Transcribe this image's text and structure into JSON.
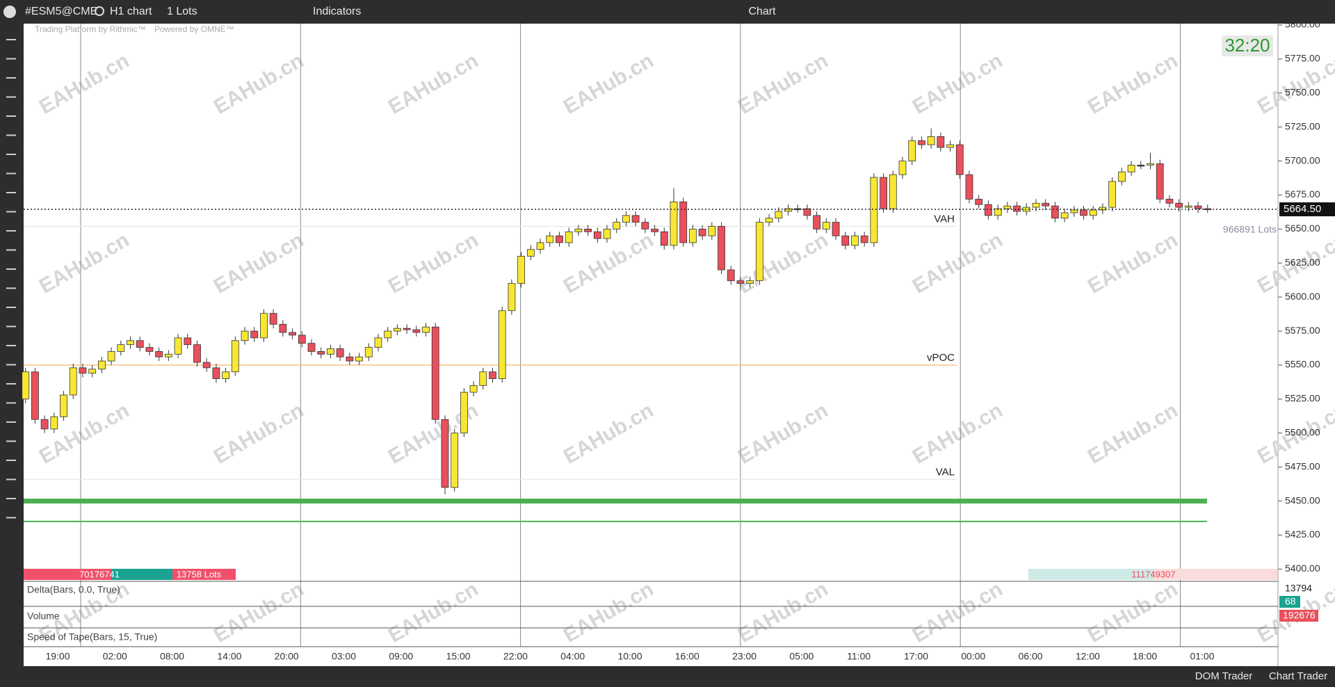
{
  "toolbar": {
    "symbol": "#ESM5@CME",
    "timeframe": "H1 chart",
    "quantity": "1 Lots",
    "indicators": "Indicators",
    "title": "Chart"
  },
  "watermark": {
    "platform": "Trading Platform by Rithmic™",
    "powered": "Powered by OMNE™",
    "site": "EAHub.cn"
  },
  "timer": "32:20",
  "chart_data": {
    "type": "candlestick",
    "ylim": [
      5391,
      5800
    ],
    "yticks": [
      {
        "value": 5400,
        "label": "5400.00"
      },
      {
        "value": 5425,
        "label": "5425.00"
      },
      {
        "value": 5450,
        "label": "5450.00"
      },
      {
        "value": 5475,
        "label": "5475.00"
      },
      {
        "value": 5500,
        "label": "5500.00"
      },
      {
        "value": 5525,
        "label": "5525.00"
      },
      {
        "value": 5550,
        "label": "5550.00"
      },
      {
        "value": 5575,
        "label": "5575.00"
      },
      {
        "value": 5600,
        "label": "5600.00"
      },
      {
        "value": 5625,
        "label": "5625.00"
      },
      {
        "value": 5650,
        "label": "5650.00"
      },
      {
        "value": 5675,
        "label": "5675.00"
      },
      {
        "value": 5700,
        "label": "5700.00"
      },
      {
        "value": 5725,
        "label": "5725.00"
      },
      {
        "value": 5750,
        "label": "5750.00"
      },
      {
        "value": 5775,
        "label": "5775.00"
      },
      {
        "value": 5800,
        "label": "5800.00"
      }
    ],
    "time_labels": [
      "19:00",
      "02:00",
      "08:00",
      "14:00",
      "20:00",
      "03:00",
      "09:00",
      "15:00",
      "22:00",
      "04:00",
      "10:00",
      "16:00",
      "23:00",
      "05:00",
      "11:00",
      "17:00",
      "00:00",
      "06:00",
      "12:00",
      "18:00",
      "01:00"
    ],
    "up_color": "#f7e733",
    "down_color": "#e8505b",
    "candles": [
      [
        5525,
        5548,
        5522,
        5545
      ],
      [
        5545,
        5548,
        5507,
        5510
      ],
      [
        5510,
        5513,
        5500,
        5503
      ],
      [
        5503,
        5515,
        5500,
        5512
      ],
      [
        5512,
        5531,
        5509,
        5528
      ],
      [
        5528,
        5551,
        5525,
        5548
      ],
      [
        5548,
        5551,
        5541,
        5544
      ],
      [
        5544,
        5550,
        5541,
        5547
      ],
      [
        5547,
        5556,
        5544,
        5553
      ],
      [
        5553,
        5563,
        5550,
        5560
      ],
      [
        5560,
        5568,
        5557,
        5565
      ],
      [
        5565,
        5571,
        5562,
        5568
      ],
      [
        5568,
        5571,
        5560,
        5563
      ],
      [
        5563,
        5566,
        5557,
        5560
      ],
      [
        5560,
        5563,
        5553,
        5556
      ],
      [
        5556,
        5561,
        5553,
        5558
      ],
      [
        5558,
        5573,
        5555,
        5570
      ],
      [
        5570,
        5573,
        5562,
        5565
      ],
      [
        5565,
        5568,
        5549,
        5552
      ],
      [
        5552,
        5555,
        5545,
        5548
      ],
      [
        5548,
        5551,
        5537,
        5540
      ],
      [
        5540,
        5548,
        5537,
        5545
      ],
      [
        5545,
        5571,
        5542,
        5568
      ],
      [
        5568,
        5578,
        5565,
        5575
      ],
      [
        5575,
        5578,
        5567,
        5570
      ],
      [
        5570,
        5591,
        5567,
        5588
      ],
      [
        5588,
        5591,
        5577,
        5580
      ],
      [
        5580,
        5583,
        5571,
        5574
      ],
      [
        5574,
        5577,
        5569,
        5572
      ],
      [
        5572,
        5575,
        5563,
        5566
      ],
      [
        5566,
        5569,
        5557,
        5560
      ],
      [
        5560,
        5563,
        5555,
        5558
      ],
      [
        5558,
        5565,
        5555,
        5562
      ],
      [
        5562,
        5565,
        5553,
        5556
      ],
      [
        5556,
        5559,
        5550,
        5553
      ],
      [
        5553,
        5559,
        5550,
        5556
      ],
      [
        5556,
        5566,
        5553,
        5563
      ],
      [
        5563,
        5573,
        5560,
        5570
      ],
      [
        5570,
        5578,
        5567,
        5575
      ],
      [
        5575,
        5580,
        5572,
        5577
      ],
      [
        5577,
        5580,
        5573,
        5576
      ],
      [
        5576,
        5579,
        5571,
        5574
      ],
      [
        5574,
        5581,
        5571,
        5578
      ],
      [
        5578,
        5581,
        5507,
        5510
      ],
      [
        5510,
        5513,
        5455,
        5460
      ],
      [
        5460,
        5503,
        5457,
        5500
      ],
      [
        5500,
        5533,
        5497,
        5530
      ],
      [
        5530,
        5538,
        5527,
        5535
      ],
      [
        5535,
        5548,
        5532,
        5545
      ],
      [
        5545,
        5548,
        5537,
        5540
      ],
      [
        5540,
        5593,
        5537,
        5590
      ],
      [
        5590,
        5613,
        5587,
        5610
      ],
      [
        5610,
        5633,
        5607,
        5630
      ],
      [
        5630,
        5638,
        5627,
        5635
      ],
      [
        5635,
        5643,
        5632,
        5640
      ],
      [
        5640,
        5648,
        5637,
        5645
      ],
      [
        5645,
        5648,
        5637,
        5640
      ],
      [
        5640,
        5651,
        5637,
        5648
      ],
      [
        5648,
        5653,
        5645,
        5650
      ],
      [
        5650,
        5653,
        5645,
        5648
      ],
      [
        5648,
        5651,
        5640,
        5643
      ],
      [
        5643,
        5653,
        5640,
        5650
      ],
      [
        5650,
        5658,
        5647,
        5655
      ],
      [
        5655,
        5663,
        5652,
        5660
      ],
      [
        5660,
        5663,
        5652,
        5655
      ],
      [
        5655,
        5658,
        5647,
        5650
      ],
      [
        5650,
        5653,
        5645,
        5648
      ],
      [
        5648,
        5651,
        5635,
        5638
      ],
      [
        5638,
        5680,
        5635,
        5670
      ],
      [
        5670,
        5673,
        5637,
        5640
      ],
      [
        5640,
        5653,
        5637,
        5650
      ],
      [
        5650,
        5653,
        5642,
        5645
      ],
      [
        5645,
        5655,
        5642,
        5652
      ],
      [
        5652,
        5655,
        5617,
        5620
      ],
      [
        5620,
        5623,
        5609,
        5612
      ],
      [
        5612,
        5615,
        5605,
        5610
      ],
      [
        5610,
        5615,
        5607,
        5612
      ],
      [
        5612,
        5658,
        5609,
        5655
      ],
      [
        5655,
        5661,
        5652,
        5658
      ],
      [
        5658,
        5666,
        5655,
        5663
      ],
      [
        5663,
        5668,
        5660,
        5665
      ],
      [
        5665,
        5668,
        5662,
        5665
      ],
      [
        5665,
        5668,
        5657,
        5660
      ],
      [
        5660,
        5663,
        5647,
        5650
      ],
      [
        5650,
        5658,
        5647,
        5655
      ],
      [
        5655,
        5658,
        5642,
        5645
      ],
      [
        5645,
        5648,
        5635,
        5638
      ],
      [
        5638,
        5648,
        5635,
        5645
      ],
      [
        5645,
        5648,
        5637,
        5640
      ],
      [
        5640,
        5691,
        5637,
        5688
      ],
      [
        5688,
        5691,
        5662,
        5665
      ],
      [
        5665,
        5693,
        5662,
        5690
      ],
      [
        5690,
        5703,
        5687,
        5700
      ],
      [
        5700,
        5718,
        5697,
        5715
      ],
      [
        5715,
        5718,
        5709,
        5712
      ],
      [
        5712,
        5724,
        5709,
        5718
      ],
      [
        5718,
        5721,
        5707,
        5710
      ],
      [
        5710,
        5715,
        5707,
        5712
      ],
      [
        5712,
        5715,
        5687,
        5690
      ],
      [
        5690,
        5693,
        5669,
        5672
      ],
      [
        5672,
        5675,
        5665,
        5668
      ],
      [
        5668,
        5671,
        5657,
        5660
      ],
      [
        5660,
        5668,
        5657,
        5665
      ],
      [
        5665,
        5670,
        5662,
        5667
      ],
      [
        5667,
        5670,
        5660,
        5663
      ],
      [
        5663,
        5669,
        5660,
        5666
      ],
      [
        5666,
        5672,
        5663,
        5669
      ],
      [
        5669,
        5672,
        5664,
        5667
      ],
      [
        5667,
        5670,
        5655,
        5658
      ],
      [
        5658,
        5665,
        5655,
        5662
      ],
      [
        5662,
        5667,
        5659,
        5664
      ],
      [
        5664,
        5667,
        5657,
        5660
      ],
      [
        5660,
        5667,
        5657,
        5664
      ],
      [
        5664,
        5669,
        5661,
        5666
      ],
      [
        5666,
        5688,
        5663,
        5685
      ],
      [
        5685,
        5695,
        5682,
        5692
      ],
      [
        5692,
        5700,
        5689,
        5697
      ],
      [
        5697,
        5700,
        5694,
        5697
      ],
      [
        5697,
        5706,
        5694,
        5698
      ],
      [
        5698,
        5701,
        5669,
        5672
      ],
      [
        5672,
        5675,
        5666,
        5669
      ],
      [
        5669,
        5672,
        5663,
        5666
      ],
      [
        5666,
        5670,
        5663,
        5667
      ],
      [
        5667,
        5670,
        5662,
        5665
      ],
      [
        5665,
        5668,
        5662,
        5664.5
      ]
    ],
    "last_price": {
      "value": 5664.5,
      "label": "5664.50"
    },
    "profile_levels": [
      {
        "label": "VAH",
        "price": 5652,
        "color": "#e6e6e6"
      },
      {
        "label": "vPOC",
        "price": 5550,
        "color": "#f5b66b"
      },
      {
        "label": "VAL",
        "price": 5466,
        "color": "#e6e6e6"
      }
    ],
    "levels": [
      {
        "price": 5450,
        "color": "#4caf50"
      },
      {
        "price": 5435,
        "color": "#4caf50"
      }
    ]
  },
  "annotations": {
    "lots_right": "966891 Lots",
    "left_total": 70176741,
    "left_lots": "13758 Lots",
    "right_total": 111749307
  },
  "panels": {
    "delta": "Delta(Bars, 0.0, True)",
    "volume": "Volume",
    "speed": "Speed of Tape(Bars, 15, True)",
    "delta_max": 13794,
    "delta_value": 68,
    "volume_value": 192676
  },
  "footer": {
    "dom": "DOM Trader",
    "chart_trader": "Chart Trader"
  }
}
